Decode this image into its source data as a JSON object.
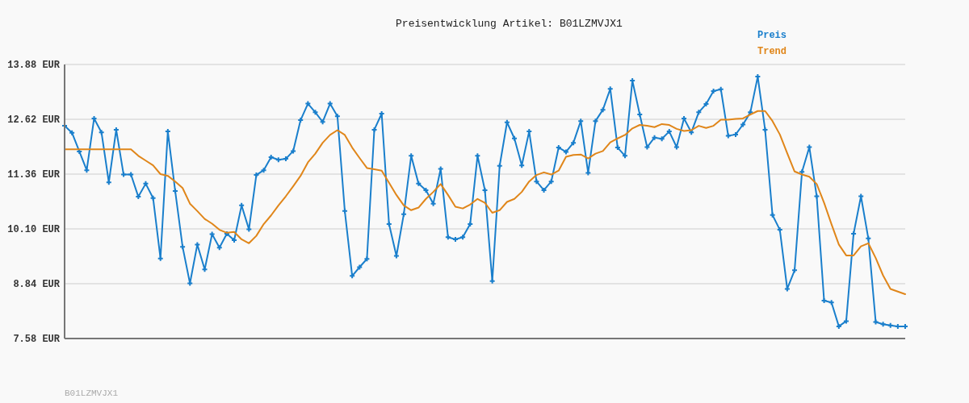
{
  "chart_data": {
    "type": "line",
    "title": "Preisentwicklung Artikel: B01LZMVJX1",
    "categories": [
      null,
      null,
      null,
      null,
      null,
      null,
      null,
      null,
      null,
      null,
      null,
      null,
      null,
      null,
      null,
      null,
      null,
      null,
      null,
      null,
      null,
      null,
      null,
      null,
      null,
      null,
      null,
      null,
      null,
      null,
      null,
      null,
      null,
      null,
      null,
      null,
      null,
      null,
      null,
      null,
      null,
      null,
      null,
      null,
      null,
      null,
      null,
      null,
      null,
      null,
      null,
      null,
      null,
      null,
      null,
      null,
      null,
      null,
      null,
      null,
      null,
      null,
      null,
      null,
      null,
      null,
      null,
      null,
      null,
      null,
      null,
      null,
      null,
      null,
      null,
      null,
      null,
      null,
      null,
      null,
      null,
      null,
      null,
      null,
      null,
      null,
      null,
      null,
      null,
      null,
      null,
      null,
      null,
      null,
      null,
      null,
      null,
      null,
      null,
      null,
      null,
      null,
      null,
      null,
      null,
      null,
      null,
      null,
      null,
      null,
      null,
      null,
      null,
      null,
      null
    ],
    "series": [
      {
        "name": "Preis",
        "color": "#1a7fcc",
        "marker": "cross",
        "values": [
          12.47,
          12.31,
          11.88,
          11.45,
          12.64,
          12.32,
          11.17,
          12.38,
          11.35,
          11.35,
          10.84,
          11.14,
          10.81,
          9.42,
          12.34,
          10.97,
          9.69,
          8.85,
          9.74,
          9.17,
          9.98,
          9.67,
          9.99,
          9.84,
          10.64,
          10.09,
          11.34,
          11.45,
          11.75,
          11.69,
          11.71,
          11.89,
          12.6,
          12.98,
          12.78,
          12.56,
          12.98,
          12.69,
          10.51,
          9.02,
          9.22,
          9.41,
          12.38,
          12.75,
          10.21,
          9.48,
          10.44,
          11.78,
          11.14,
          10.99,
          10.68,
          11.48,
          9.91,
          9.86,
          9.91,
          10.21,
          11.78,
          10.99,
          8.9,
          11.55,
          12.55,
          12.18,
          11.56,
          12.34,
          11.19,
          10.99,
          11.19,
          11.97,
          11.87,
          12.08,
          12.58,
          11.39,
          12.58,
          12.84,
          13.32,
          11.97,
          11.78,
          13.51,
          12.73,
          11.98,
          12.2,
          12.17,
          12.34,
          11.98,
          12.64,
          12.32,
          12.78,
          12.97,
          13.27,
          13.31,
          12.24,
          12.27,
          12.5,
          12.78,
          13.6,
          12.38,
          10.42,
          10.08,
          8.72,
          9.15,
          11.41,
          11.98,
          10.85,
          8.45,
          8.41,
          7.86,
          7.98,
          9.99,
          10.85,
          9.88,
          7.96,
          7.91,
          7.88,
          7.86,
          7.86
        ]
      },
      {
        "name": "Trend",
        "color": "#e0861a",
        "marker": "none",
        "values": [
          11.93,
          11.93,
          11.93,
          11.93,
          11.93,
          11.93,
          11.93,
          11.93,
          11.93,
          11.93,
          11.78,
          11.67,
          11.56,
          11.36,
          11.32,
          11.19,
          11.04,
          10.68,
          10.51,
          10.33,
          10.22,
          10.08,
          10.01,
          10.03,
          9.86,
          9.77,
          9.94,
          10.21,
          10.41,
          10.64,
          10.85,
          11.08,
          11.32,
          11.63,
          11.83,
          12.08,
          12.26,
          12.37,
          12.26,
          11.97,
          11.73,
          11.5,
          11.47,
          11.44,
          11.16,
          10.88,
          10.64,
          10.53,
          10.59,
          10.79,
          10.95,
          11.13,
          10.88,
          10.61,
          10.57,
          10.66,
          10.79,
          10.7,
          10.47,
          10.53,
          10.72,
          10.79,
          10.95,
          11.19,
          11.34,
          11.4,
          11.35,
          11.44,
          11.76,
          11.8,
          11.81,
          11.72,
          11.83,
          11.89,
          12.09,
          12.18,
          12.26,
          12.41,
          12.49,
          12.47,
          12.44,
          12.51,
          12.49,
          12.4,
          12.35,
          12.37,
          12.47,
          12.42,
          12.47,
          12.61,
          12.61,
          12.63,
          12.64,
          12.73,
          12.81,
          12.81,
          12.58,
          12.27,
          11.84,
          11.42,
          11.35,
          11.3,
          11.13,
          10.7,
          10.21,
          9.74,
          9.49,
          9.49,
          9.7,
          9.77,
          9.43,
          9.03,
          8.72,
          8.66,
          8.6
        ]
      }
    ],
    "ylim": [
      7.58,
      13.88
    ],
    "yticks": [
      {
        "value": 7.58,
        "label": "7.58 EUR"
      },
      {
        "value": 8.84,
        "label": "8.84 EUR"
      },
      {
        "value": 10.1,
        "label": "10.10 EUR"
      },
      {
        "value": 11.36,
        "label": "11.36 EUR"
      },
      {
        "value": 12.62,
        "label": "12.62 EUR"
      },
      {
        "value": 13.88,
        "label": "13.88 EUR"
      }
    ],
    "grid": "y",
    "legend": "top right",
    "line_style": "solid",
    "annotations": [
      "B01LZMVJX1"
    ]
  }
}
